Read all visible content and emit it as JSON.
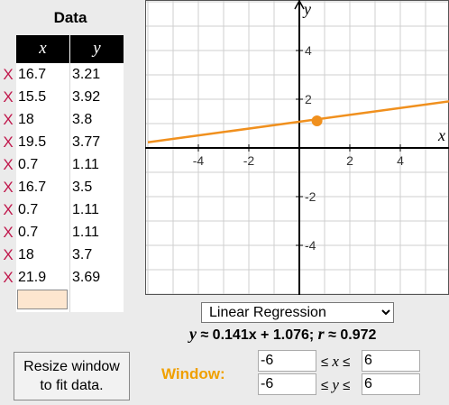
{
  "data_panel": {
    "title": "Data",
    "col_x": "x",
    "col_y": "y",
    "delete_glyph": "X",
    "rows": [
      {
        "x": "16.7",
        "y": "3.21"
      },
      {
        "x": "15.5",
        "y": "3.92"
      },
      {
        "x": "18",
        "y": "3.8"
      },
      {
        "x": "19.5",
        "y": "3.77"
      },
      {
        "x": "0.7",
        "y": "1.11"
      },
      {
        "x": "16.7",
        "y": "3.5"
      },
      {
        "x": "0.7",
        "y": "1.11"
      },
      {
        "x": "0.7",
        "y": "1.11"
      },
      {
        "x": "18",
        "y": "3.7"
      },
      {
        "x": "21.9",
        "y": "3.69"
      }
    ],
    "new_entry_value": ""
  },
  "graph": {
    "x_axis_label": "x",
    "y_axis_label": "y",
    "x_ticks": [
      "-4",
      "-2",
      "2",
      "4"
    ],
    "y_ticks": [
      "4",
      "2",
      "-2",
      "-4"
    ],
    "line_color": "#f0901e",
    "point_color": "#f0901e"
  },
  "chart_data": {
    "type": "scatter",
    "x_range": [
      -6,
      6
    ],
    "y_range": [
      -6,
      6
    ],
    "grid": true,
    "regression_line": {
      "slope": 0.141,
      "intercept": 1.076
    },
    "visible_points": [
      {
        "x": 0.7,
        "y": 1.11
      }
    ]
  },
  "regression": {
    "selected": "Linear Regression",
    "equation_y": "y",
    "equation_rhs": " ≈ 0.141x + 1.076; ",
    "equation_r": "r",
    "equation_r_value": " ≈ 0.972"
  },
  "controls": {
    "resize_button_label": "Resize window\nto fit data.",
    "window_label": "Window:",
    "x_min": "-6",
    "x_max": "6",
    "y_min": "-6",
    "y_max": "6",
    "leq": "≤",
    "x_var": "x",
    "y_var": "y"
  }
}
